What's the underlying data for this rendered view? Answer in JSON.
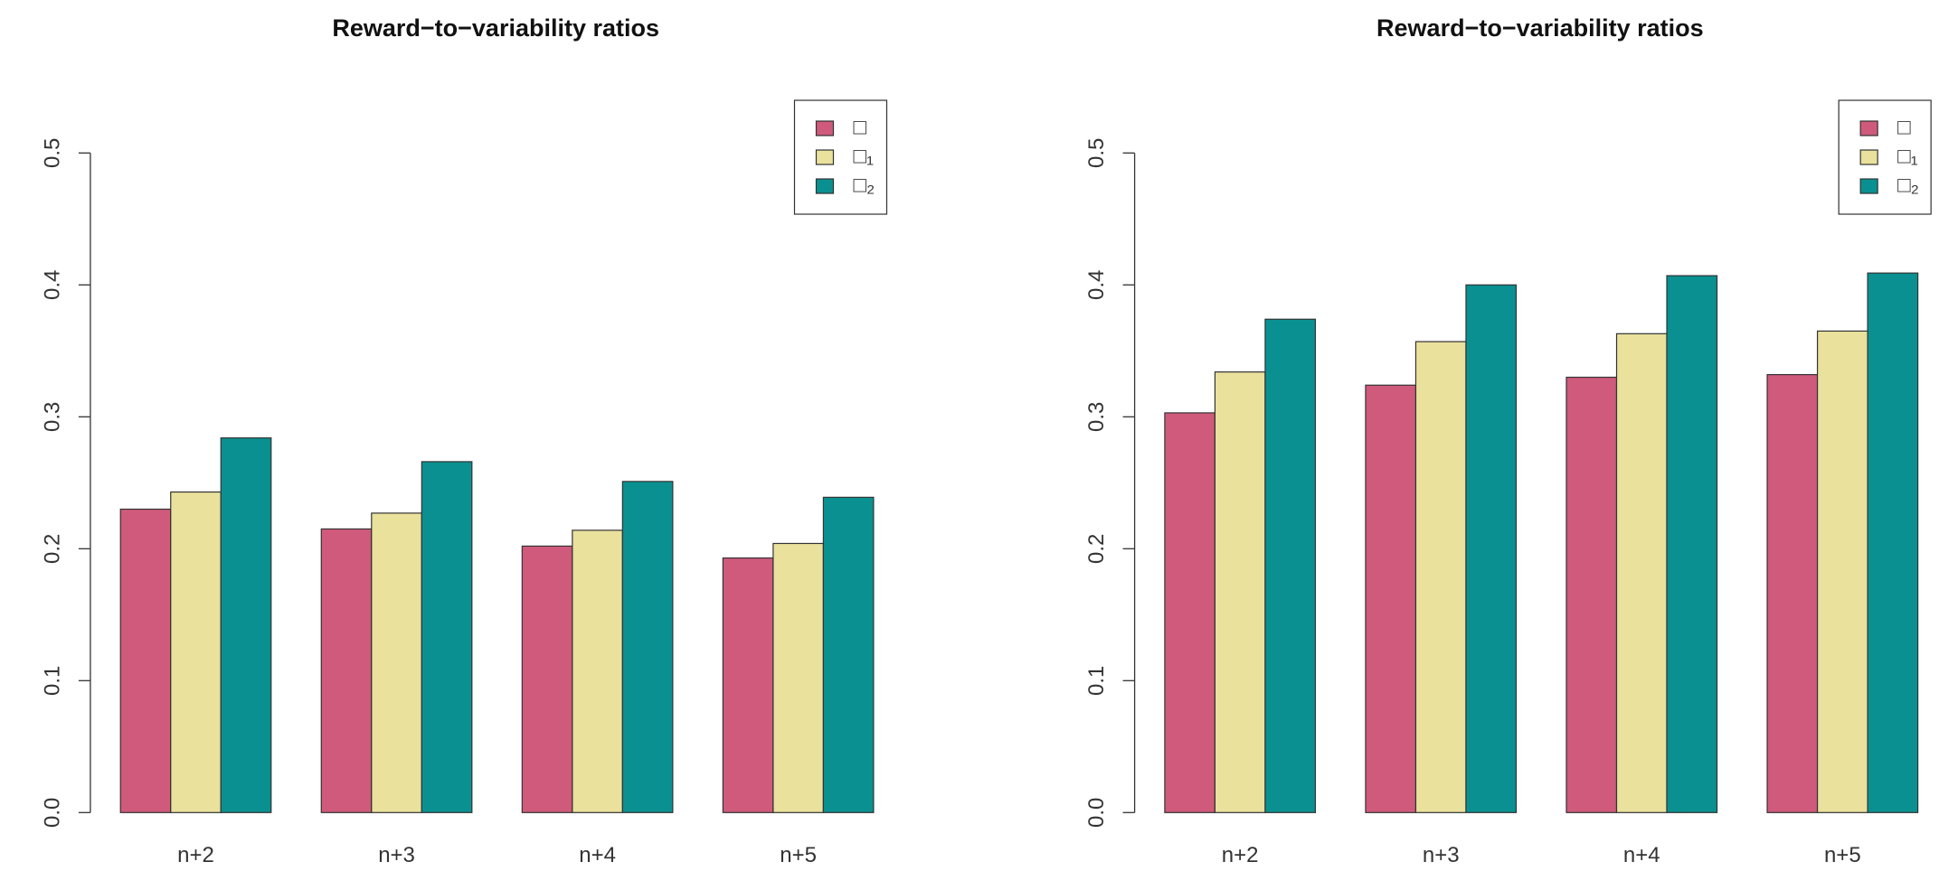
{
  "chart_data": [
    {
      "type": "bar",
      "title": "Reward−to−variability ratios",
      "categories": [
        "n+2",
        "n+3",
        "n+4",
        "n+5"
      ],
      "series": [
        {
          "name": "□",
          "color": "#cf5a7c",
          "values": [
            0.23,
            0.215,
            0.202,
            0.193
          ]
        },
        {
          "name": "□₁",
          "color": "#e9e19c",
          "values": [
            0.243,
            0.227,
            0.214,
            0.204
          ]
        },
        {
          "name": "□₂",
          "color": "#0a9090",
          "values": [
            0.284,
            0.266,
            0.251,
            0.239
          ]
        }
      ],
      "ylim": [
        0,
        0.5
      ],
      "yticks": [
        {
          "value": 0,
          "label": "0.0"
        },
        0.1,
        0.2,
        0.3,
        0.4,
        0.5
      ],
      "legend": "top-right"
    },
    {
      "type": "bar",
      "title": "Reward−to−variability ratios",
      "categories": [
        "n+2",
        "n+3",
        "n+4",
        "n+5"
      ],
      "series": [
        {
          "name": "□",
          "color": "#cf5a7c",
          "values": [
            0.303,
            0.324,
            0.33,
            0.332
          ]
        },
        {
          "name": "□₁",
          "color": "#e9e19c",
          "values": [
            0.334,
            0.357,
            0.363,
            0.365
          ]
        },
        {
          "name": "□₂",
          "color": "#0a9090",
          "values": [
            0.374,
            0.4,
            0.407,
            0.409
          ]
        }
      ],
      "ylim": [
        0,
        0.5
      ],
      "yticks": [
        {
          "value": 0,
          "label": "0.0"
        },
        0.1,
        0.2,
        0.3,
        0.4,
        0.5
      ],
      "legend": "top-right"
    }
  ]
}
